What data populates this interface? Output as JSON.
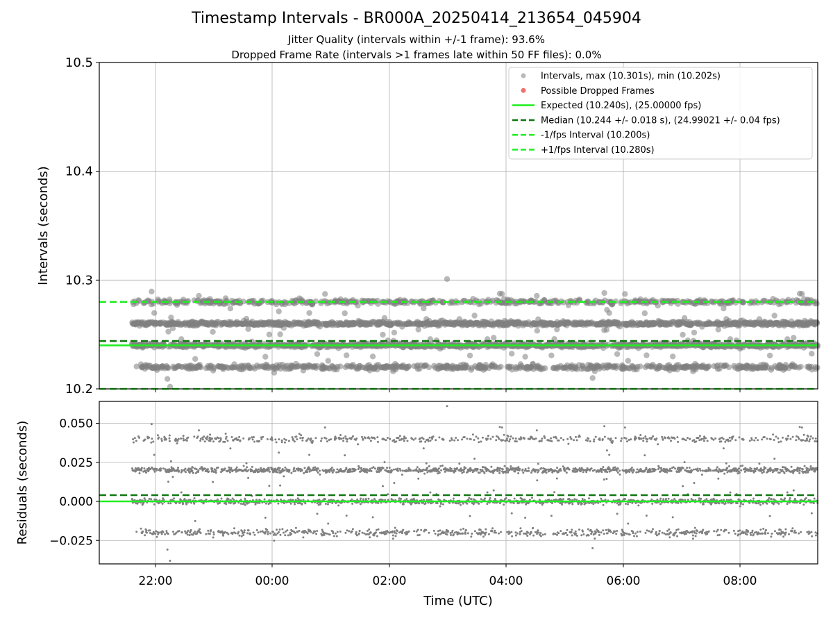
{
  "chart_data": [
    {
      "type": "scatter",
      "title": "Timestamp Intervals - BR000A_20250414_213654_045904",
      "subtitle_1": "Jitter Quality (intervals within +/-1 frame): 93.6%",
      "subtitle_2": "Dropped Frame Rate (intervals >1 frames late within 50 FF files): 0.0%",
      "ylabel": "Intervals (seconds)",
      "ylim": [
        10.2,
        10.5
      ],
      "yticks": [
        "10.2",
        "10.3",
        "10.4",
        "10.5"
      ],
      "grid": true,
      "legend_placement": "top-right",
      "series": [
        {
          "name": "Intervals, max (10.301s), min (10.202s)",
          "kind": "points",
          "color": "#808080",
          "bands": [
            10.22,
            10.24,
            10.26,
            10.28
          ],
          "max": 10.301,
          "min": 10.202
        },
        {
          "name": "Possible Dropped Frames",
          "kind": "points",
          "color": "#f06060",
          "values": []
        },
        {
          "name": "Expected (10.240s), (25.00000 fps)",
          "kind": "hline",
          "y": 10.24,
          "color": "#22ee22",
          "dashed": false
        },
        {
          "name": "Median (10.244 +/- 0.018 s), (24.99021 +/- 0.04 fps)",
          "kind": "hline",
          "y": 10.244,
          "color": "#117711",
          "dashed": true
        },
        {
          "name": "-1/fps Interval (10.200s)",
          "kind": "hline",
          "y": 10.2,
          "color": "#22ee22",
          "dashed": true
        },
        {
          "name": "+1/fps Interval (10.280s)",
          "kind": "hline",
          "y": 10.28,
          "color": "#22ee22",
          "dashed": true
        }
      ]
    },
    {
      "type": "scatter",
      "xlabel": "Time (UTC)",
      "ylabel": "Residuals (seconds)",
      "ylim": [
        -0.04,
        0.064
      ],
      "yticks": [
        "−0.025",
        "0.000",
        "0.025",
        "0.050"
      ],
      "ytick_values": [
        -0.025,
        0.0,
        0.025,
        0.05
      ],
      "xticks": [
        "22:00",
        "00:00",
        "02:00",
        "04:00",
        "06:00",
        "08:00"
      ],
      "grid": true,
      "series": [
        {
          "kind": "points",
          "color": "#808080",
          "bands": [
            -0.02,
            0.0,
            0.02,
            0.04
          ],
          "max": 0.061,
          "min": -0.038
        },
        {
          "kind": "hline",
          "y": 0.0,
          "color": "#22ee22",
          "dashed": false
        },
        {
          "kind": "hline",
          "y": 0.004,
          "color": "#117711",
          "dashed": true
        }
      ]
    }
  ]
}
